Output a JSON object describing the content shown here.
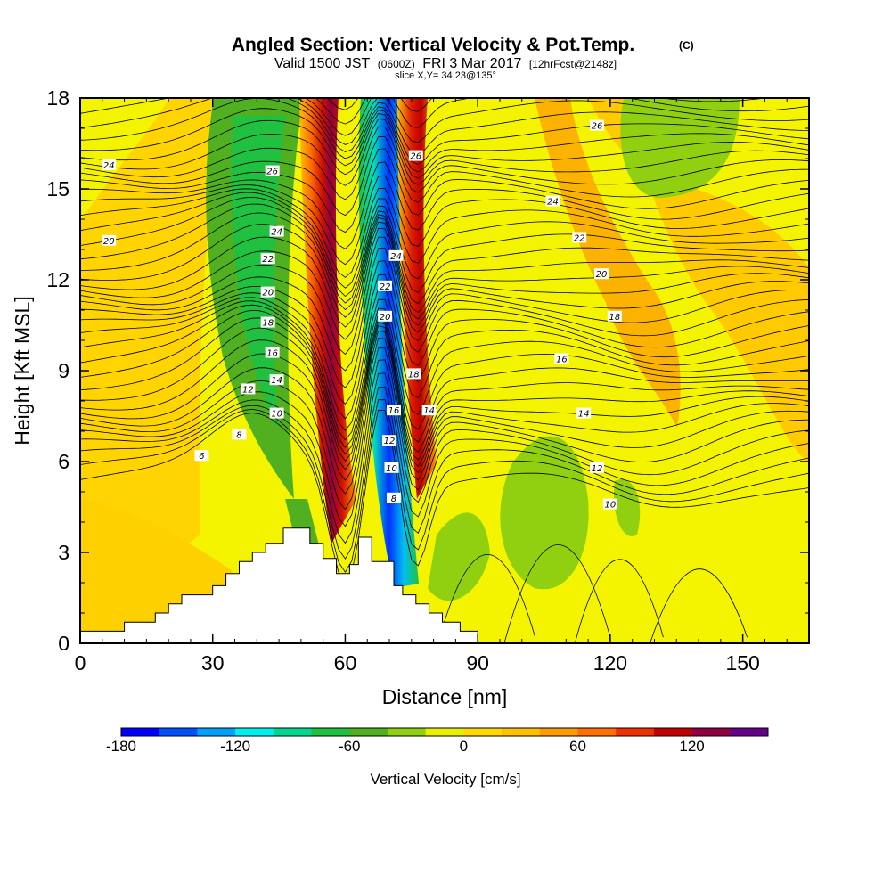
{
  "chart_data": {
    "type": "heatmap",
    "title": "Angled Section: Vertical Velocity & Pot.Temp.",
    "title_suffix": "(C)",
    "subtitle": {
      "valid": "Valid 1500 JST",
      "utc": "(0600Z)",
      "date": "FRI 3 Mar 2017",
      "forecast": "[12hrFcst@2148z]"
    },
    "slice_label": "slice X,Y= 34,23@135°",
    "xlabel": "Distance [nm]",
    "ylabel": "Height [Kft MSL]",
    "xlim": [
      0,
      165
    ],
    "ylim": [
      0,
      18
    ],
    "x_ticks": [
      0,
      30,
      60,
      90,
      120,
      150
    ],
    "y_ticks": [
      0,
      3,
      6,
      9,
      12,
      15,
      18
    ],
    "x_tick_labels": [
      "0",
      "30",
      "60",
      "90",
      "120",
      "150"
    ],
    "y_tick_labels": [
      "0",
      "3",
      "6",
      "9",
      "12",
      "15",
      "18"
    ],
    "colorbar": {
      "title": "Vertical Velocity [cm/s]",
      "range": [
        -180,
        150
      ],
      "labels": [
        "-180",
        "-120",
        "-60",
        "0",
        "60",
        "120"
      ],
      "label_values": [
        -180,
        -120,
        -60,
        0,
        60,
        120
      ],
      "colors": [
        "#0000ff",
        "#0050ff",
        "#00a0ff",
        "#00f0f0",
        "#00d890",
        "#20c040",
        "#50b020",
        "#90d010",
        "#e8f000",
        "#ffd800",
        "#ffc000",
        "#ff9c00",
        "#ff7000",
        "#f03000",
        "#c00000",
        "#900040",
        "#660088"
      ]
    },
    "terrain_profile_kft": {
      "x": [
        0,
        10,
        10,
        17,
        17,
        20,
        20,
        23,
        23,
        30,
        30,
        33,
        33,
        36,
        36,
        39,
        39,
        42,
        42,
        46,
        46,
        52,
        52,
        55,
        55,
        58,
        58,
        61,
        61,
        63,
        63,
        66,
        66,
        71,
        71,
        73,
        73,
        76,
        76,
        79,
        79,
        82,
        82,
        86,
        86,
        90,
        90,
        165
      ],
      "y": [
        0.4,
        0.4,
        0.7,
        0.7,
        1.0,
        1.0,
        1.3,
        1.3,
        1.6,
        1.6,
        1.9,
        1.9,
        2.3,
        2.3,
        2.7,
        2.7,
        3.0,
        3.0,
        3.3,
        3.3,
        3.8,
        3.8,
        3.3,
        3.3,
        2.8,
        2.8,
        2.3,
        2.3,
        2.6,
        2.6,
        3.5,
        3.5,
        2.7,
        2.7,
        1.9,
        1.9,
        1.6,
        1.6,
        1.3,
        1.3,
        1.0,
        1.0,
        0.7,
        0.7,
        0.4,
        0.4,
        0.0,
        0.0
      ]
    },
    "velocity_regions": [
      {
        "name": "upwind descent",
        "center_x": 42,
        "value": -70
      },
      {
        "name": "main updraft",
        "center_x": 54,
        "value": 130
      },
      {
        "name": "secondary descent",
        "center_x": 68,
        "value": -170
      },
      {
        "name": "secondary updraft",
        "center_x": 75,
        "value": 120
      },
      {
        "name": "lee descent",
        "center_x": 105,
        "value": -40
      },
      {
        "name": "upper descent",
        "center_x": 128,
        "value": -40
      }
    ],
    "isentrope_labels": [
      {
        "value": "24",
        "x": 6.5,
        "y": 15.8
      },
      {
        "value": "20",
        "x": 6.5,
        "y": 13.3
      },
      {
        "value": "26",
        "x": 43.5,
        "y": 15.6
      },
      {
        "value": "24",
        "x": 44.5,
        "y": 13.6
      },
      {
        "value": "22",
        "x": 42.5,
        "y": 12.7
      },
      {
        "value": "20",
        "x": 42.5,
        "y": 11.6
      },
      {
        "value": "18",
        "x": 42.5,
        "y": 10.6
      },
      {
        "value": "16",
        "x": 43.5,
        "y": 9.6
      },
      {
        "value": "14",
        "x": 44.5,
        "y": 8.7
      },
      {
        "value": "12",
        "x": 38.0,
        "y": 8.4
      },
      {
        "value": "10",
        "x": 44.5,
        "y": 7.6
      },
      {
        "value": "8",
        "x": 36.0,
        "y": 6.9
      },
      {
        "value": "6",
        "x": 27.5,
        "y": 6.2
      },
      {
        "value": "26",
        "x": 76.0,
        "y": 16.1
      },
      {
        "value": "24",
        "x": 71.5,
        "y": 12.8
      },
      {
        "value": "22",
        "x": 69.0,
        "y": 11.8
      },
      {
        "value": "20",
        "x": 69.0,
        "y": 10.8
      },
      {
        "value": "18",
        "x": 75.5,
        "y": 8.9
      },
      {
        "value": "16",
        "x": 71.0,
        "y": 7.7
      },
      {
        "value": "14",
        "x": 79.0,
        "y": 7.7
      },
      {
        "value": "12",
        "x": 70.0,
        "y": 6.7
      },
      {
        "value": "10",
        "x": 70.5,
        "y": 5.8
      },
      {
        "value": "8",
        "x": 71.0,
        "y": 4.8
      },
      {
        "value": "26",
        "x": 117.0,
        "y": 17.1
      },
      {
        "value": "24",
        "x": 107.0,
        "y": 14.6
      },
      {
        "value": "22",
        "x": 113.0,
        "y": 13.4
      },
      {
        "value": "20",
        "x": 118.0,
        "y": 12.2
      },
      {
        "value": "18",
        "x": 121.0,
        "y": 10.8
      },
      {
        "value": "16",
        "x": 109.0,
        "y": 9.4
      },
      {
        "value": "14",
        "x": 114.0,
        "y": 7.6
      },
      {
        "value": "12",
        "x": 117.0,
        "y": 5.8
      },
      {
        "value": "10",
        "x": 120.0,
        "y": 4.6
      }
    ],
    "legend": "bottom"
  }
}
